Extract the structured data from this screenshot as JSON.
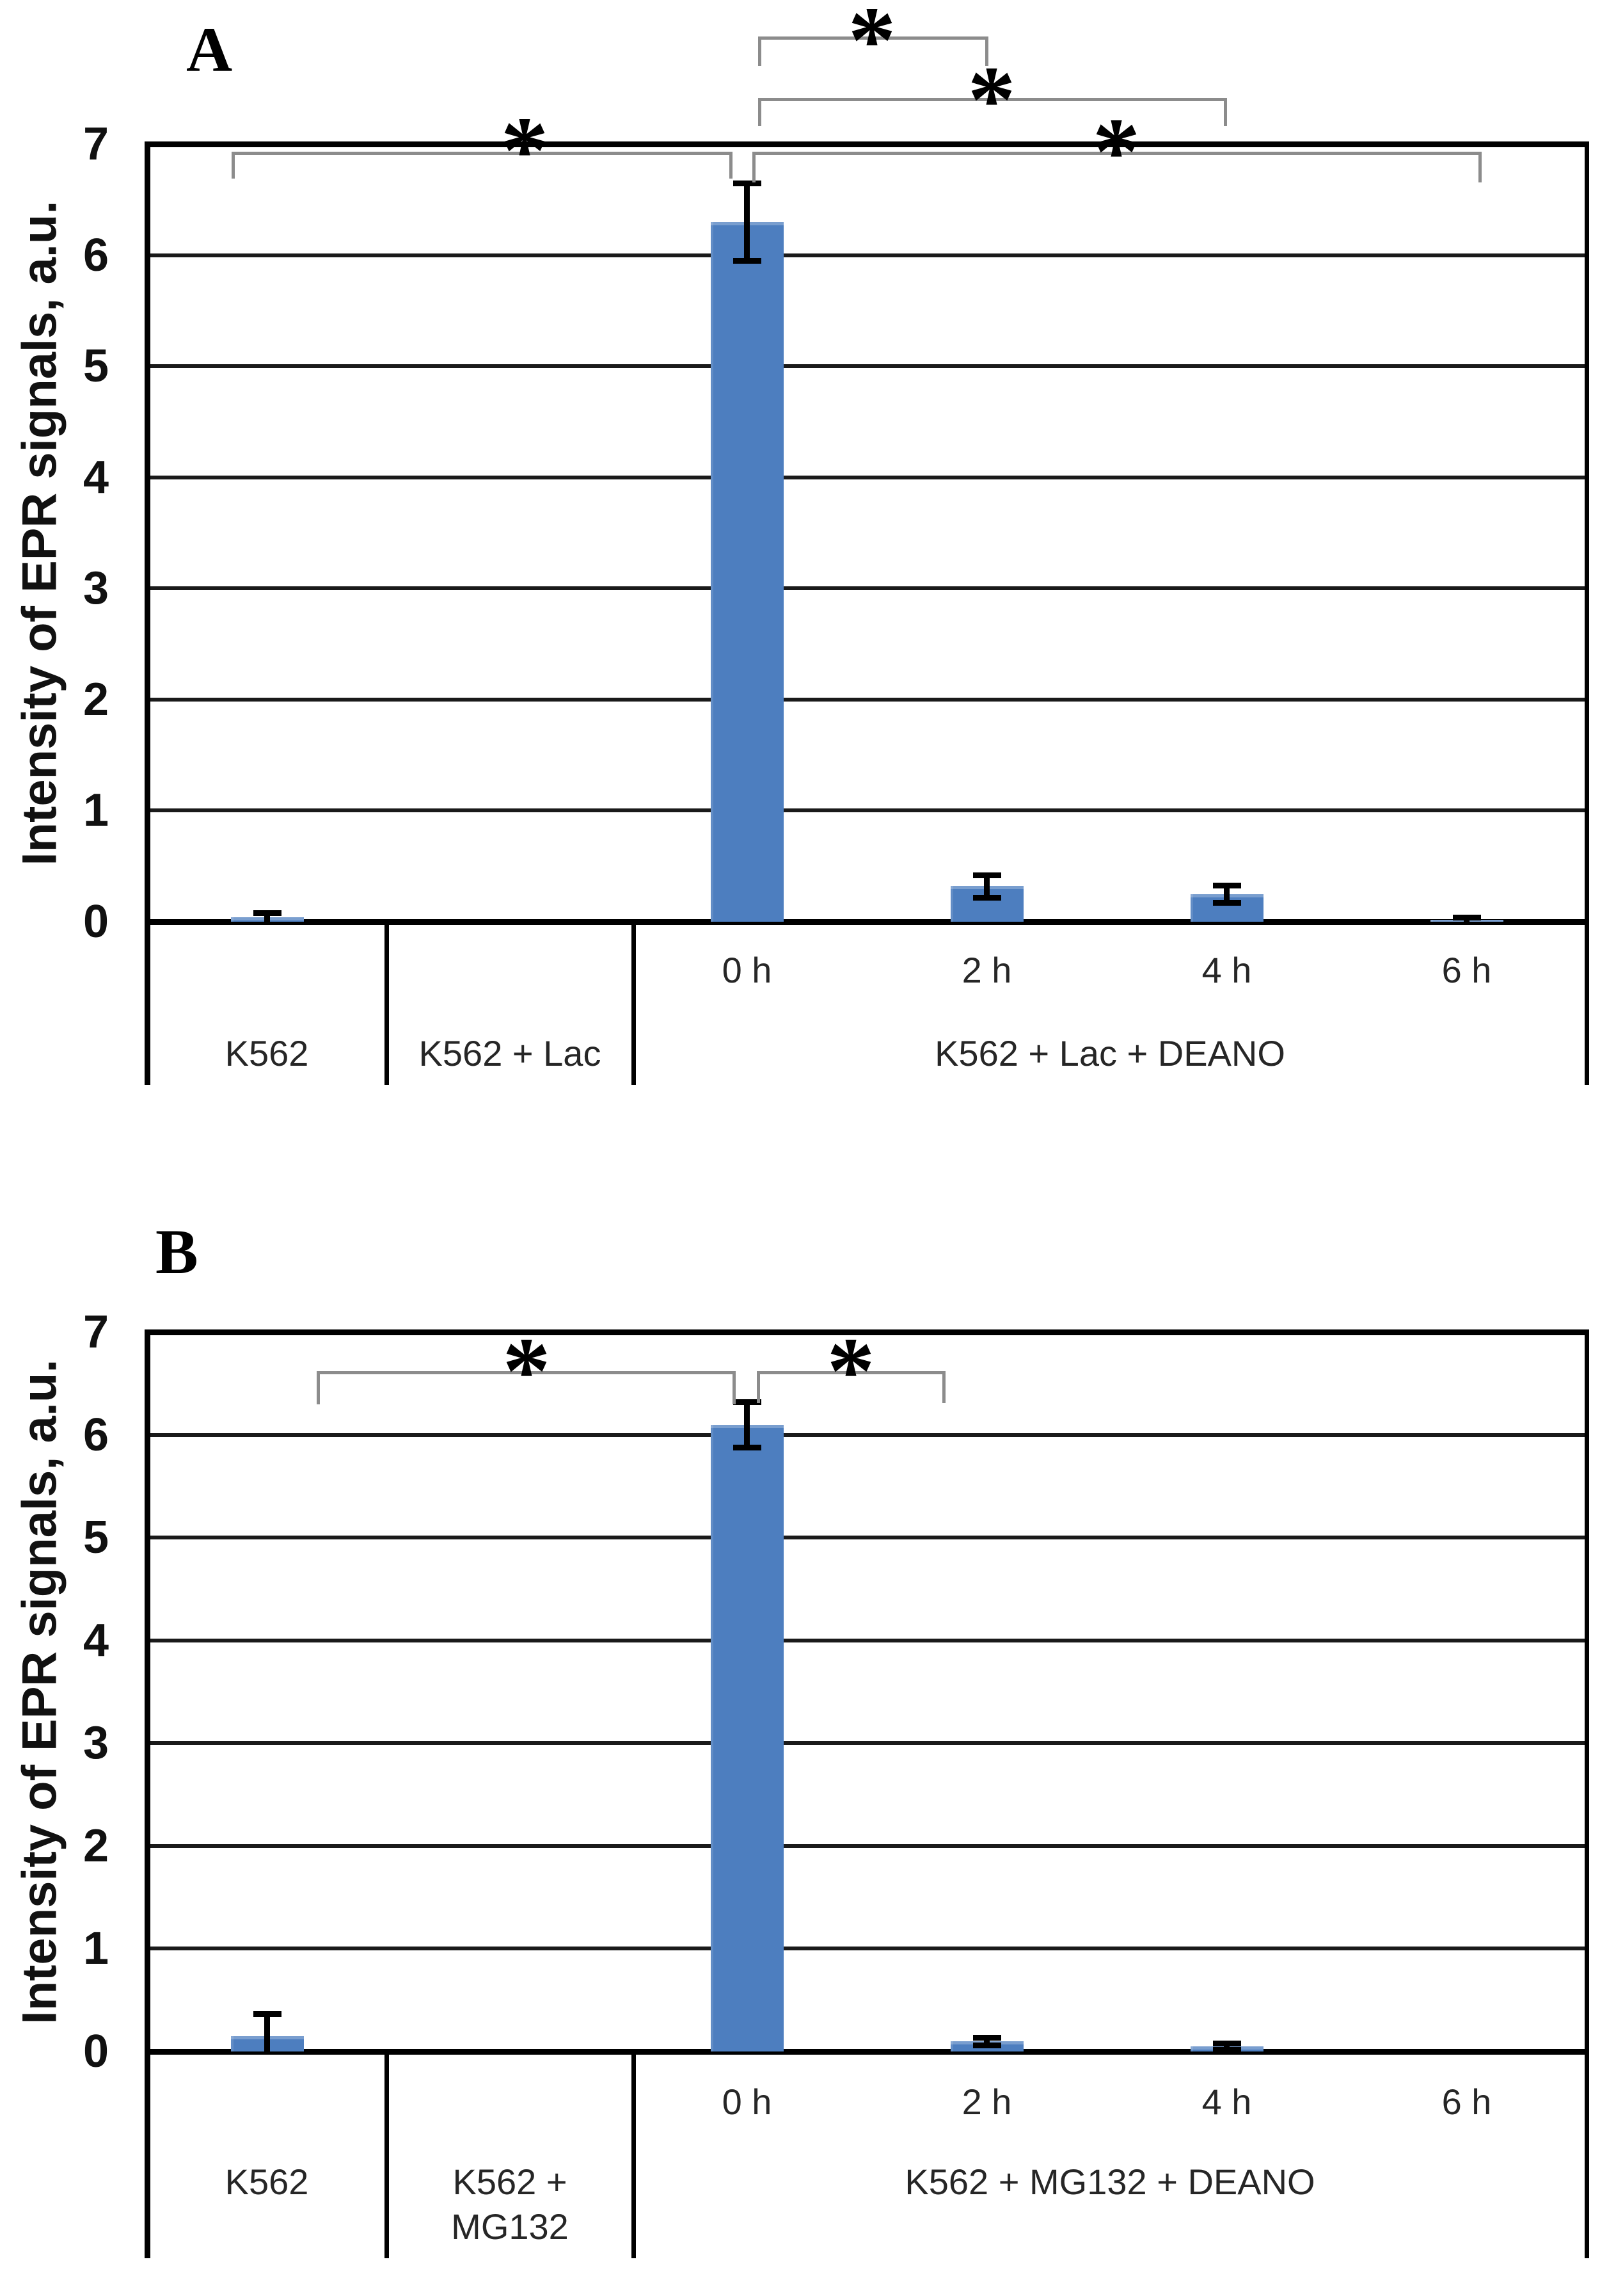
{
  "figure": {
    "description": "Two-panel bar chart of EPR signal intensity",
    "background": "#ffffff"
  },
  "colors": {
    "bar": "#4d7ebf",
    "gridline": "#1a1a1a",
    "axis": "#000000",
    "bracket": "#8c8c8c",
    "error_bar": "#000000",
    "text": "#262626"
  },
  "chart_data": [
    {
      "type": "bar",
      "panel": "A",
      "ylabel": "Intensity of EPR signals, a.u.",
      "xlabel": "",
      "ylim": [
        0,
        7
      ],
      "yticks": [
        0,
        1,
        2,
        3,
        4,
        5,
        6,
        7
      ],
      "grid": true,
      "legend": "none",
      "categories": [
        "K562",
        "K562 + Lac",
        "0 h",
        "2 h",
        "4 h",
        "6 h"
      ],
      "series": [
        {
          "category": "K562",
          "value": 0.04,
          "error": 0.04
        },
        {
          "category": "K562 + Lac",
          "value": 0,
          "error": 0
        },
        {
          "category": "0 h",
          "value": 6.3,
          "error": 0.35
        },
        {
          "category": "2 h",
          "value": 0.32,
          "error": 0.1
        },
        {
          "category": "4 h",
          "value": 0.25,
          "error": 0.08
        },
        {
          "category": "6 h",
          "value": 0.02,
          "error": 0.02
        }
      ],
      "time_labels": [
        "0 h",
        "2 h",
        "4 h",
        "6 h"
      ],
      "groups": [
        {
          "label": "K562"
        },
        {
          "label": "K562 + Lac"
        },
        {
          "label": "K562 + Lac + DEANO"
        }
      ],
      "significance": [
        {
          "pair": [
            "0 h",
            "2 h"
          ],
          "label": "*"
        },
        {
          "pair": [
            "0 h",
            "4 h"
          ],
          "label": "*"
        },
        {
          "pair": [
            "K562",
            "0 h"
          ],
          "label": "*"
        },
        {
          "pair": [
            "0 h",
            "6 h"
          ],
          "label": "*"
        }
      ]
    },
    {
      "type": "bar",
      "panel": "B",
      "ylabel": "Intensity of EPR signals, a.u.",
      "xlabel": "",
      "ylim": [
        0,
        7
      ],
      "yticks": [
        0,
        1,
        2,
        3,
        4,
        5,
        6,
        7
      ],
      "grid": true,
      "legend": "none",
      "categories": [
        "K562",
        "K562 + MG132",
        "0 h",
        "2 h",
        "4 h",
        "6 h"
      ],
      "series": [
        {
          "category": "K562",
          "value": 0.15,
          "error": 0.22
        },
        {
          "category": "K562 + MG132",
          "value": 0,
          "error": 0
        },
        {
          "category": "0 h",
          "value": 6.1,
          "error": 0.22
        },
        {
          "category": "2 h",
          "value": 0.1,
          "error": 0.04
        },
        {
          "category": "4 h",
          "value": 0.05,
          "error": 0.03
        },
        {
          "category": "6 h",
          "value": 0,
          "error": 0
        }
      ],
      "time_labels": [
        "0 h",
        "2 h",
        "4 h",
        "6 h"
      ],
      "groups": [
        {
          "label": "K562"
        },
        {
          "label": "K562 + MG132",
          "lines": [
            "K562 +",
            "MG132"
          ]
        },
        {
          "label": "K562 + MG132 + DEANO"
        }
      ],
      "significance": [
        {
          "pair": [
            "K562",
            "0 h"
          ],
          "label": "*"
        },
        {
          "pair": [
            "0 h",
            "2 h"
          ],
          "label": "*"
        }
      ]
    }
  ]
}
